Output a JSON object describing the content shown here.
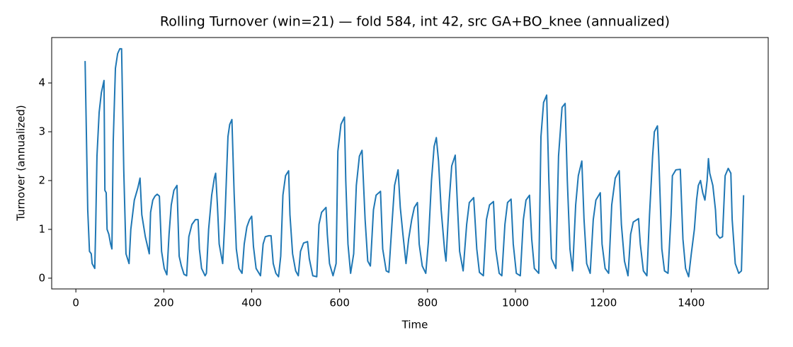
{
  "chart_data": {
    "type": "line",
    "title": "Rolling Turnover (win=21) — fold 584, int 42, src GA+BO_knee (annualized)",
    "xlabel": "Time",
    "ylabel": "Turnover (annualized)",
    "x": [
      21,
      27,
      31,
      35,
      37,
      43,
      45,
      48,
      53,
      58,
      64,
      66,
      69,
      71,
      75,
      79,
      82,
      85,
      90,
      95,
      100,
      104,
      109,
      114,
      121,
      125,
      133,
      141,
      146,
      150,
      158,
      167,
      170,
      175,
      180,
      185,
      190,
      195,
      201,
      207,
      212,
      217,
      223,
      230,
      235,
      240,
      246,
      252,
      257,
      264,
      272,
      278,
      281,
      286,
      294,
      297,
      302,
      309,
      315,
      318,
      322,
      326,
      334,
      339,
      346,
      350,
      355,
      360,
      365,
      371,
      378,
      383,
      389,
      395,
      400,
      404,
      410,
      420,
      426,
      431,
      439,
      444,
      449,
      455,
      461,
      466,
      471,
      477,
      484,
      487,
      493,
      500,
      506,
      511,
      518,
      527,
      531,
      539,
      548,
      553,
      559,
      569,
      572,
      577,
      585,
      592,
      596,
      603,
      611,
      614,
      619,
      625,
      632,
      638,
      645,
      651,
      658,
      664,
      670,
      677,
      683,
      693,
      698,
      706,
      712,
      719,
      725,
      733,
      738,
      744,
      751,
      757,
      764,
      770,
      777,
      781,
      788,
      796,
      802,
      809,
      815,
      820,
      825,
      831,
      839,
      842,
      849,
      855,
      863,
      868,
      873,
      881,
      889,
      895,
      905,
      912,
      918,
      927,
      934,
      941,
      950,
      955,
      963,
      969,
      976,
      982,
      990,
      995,
      1002,
      1011,
      1018,
      1024,
      1032,
      1037,
      1043,
      1053,
      1058,
      1064,
      1071,
      1076,
      1082,
      1092,
      1098,
      1106,
      1113,
      1118,
      1124,
      1130,
      1137,
      1143,
      1151,
      1156,
      1162,
      1170,
      1177,
      1183,
      1193,
      1197,
      1204,
      1212,
      1219,
      1227,
      1236,
      1241,
      1248,
      1256,
      1262,
      1268,
      1280,
      1284,
      1291,
      1299,
      1305,
      1312,
      1316,
      1323,
      1326,
      1333,
      1339,
      1347,
      1354,
      1357,
      1365,
      1375,
      1381,
      1387,
      1394,
      1400,
      1407,
      1412,
      1416,
      1421,
      1426,
      1431,
      1436,
      1439,
      1442,
      1449,
      1455,
      1458,
      1465,
      1471,
      1477,
      1484,
      1490,
      1493,
      1500,
      1508,
      1514,
      1519
    ],
    "series": [
      {
        "name": "Turnover",
        "color": "#1f77b4",
        "values": [
          4.45,
          1.4,
          0.55,
          0.5,
          0.3,
          0.2,
          1.0,
          2.5,
          3.4,
          3.8,
          4.05,
          1.8,
          1.75,
          1.0,
          0.9,
          0.7,
          0.6,
          2.8,
          4.3,
          4.6,
          4.7,
          4.7,
          2.2,
          0.5,
          0.3,
          1.0,
          1.6,
          1.85,
          2.05,
          1.3,
          0.85,
          0.5,
          1.35,
          1.6,
          1.68,
          1.72,
          1.68,
          0.55,
          0.2,
          0.07,
          0.9,
          1.5,
          1.8,
          1.9,
          0.45,
          0.25,
          0.08,
          0.05,
          0.85,
          1.1,
          1.2,
          1.2,
          0.6,
          0.2,
          0.05,
          0.1,
          1.0,
          1.7,
          2.05,
          2.15,
          1.5,
          0.7,
          0.3,
          1.2,
          2.9,
          3.15,
          3.25,
          1.75,
          0.6,
          0.2,
          0.1,
          0.7,
          1.05,
          1.2,
          1.27,
          0.65,
          0.2,
          0.05,
          0.7,
          0.85,
          0.87,
          0.87,
          0.3,
          0.1,
          0.03,
          0.45,
          1.7,
          2.1,
          2.2,
          1.3,
          0.5,
          0.15,
          0.05,
          0.55,
          0.72,
          0.75,
          0.4,
          0.05,
          0.03,
          1.1,
          1.35,
          1.45,
          0.9,
          0.3,
          0.05,
          0.3,
          2.6,
          3.15,
          3.3,
          2.0,
          0.7,
          0.1,
          0.5,
          1.9,
          2.5,
          2.62,
          1.2,
          0.35,
          0.25,
          1.4,
          1.7,
          1.78,
          0.6,
          0.15,
          0.12,
          1.1,
          1.9,
          2.22,
          1.45,
          0.9,
          0.3,
          0.8,
          1.2,
          1.45,
          1.55,
          0.7,
          0.25,
          0.1,
          0.75,
          2.0,
          2.7,
          2.88,
          2.4,
          1.4,
          0.55,
          0.35,
          1.55,
          2.3,
          2.52,
          1.5,
          0.55,
          0.15,
          1.1,
          1.55,
          1.65,
          0.6,
          0.12,
          0.05,
          1.2,
          1.5,
          1.57,
          0.6,
          0.1,
          0.05,
          1.1,
          1.55,
          1.62,
          0.7,
          0.1,
          0.05,
          1.2,
          1.6,
          1.7,
          0.8,
          0.2,
          0.1,
          2.9,
          3.6,
          3.75,
          2.0,
          0.4,
          0.2,
          2.5,
          3.5,
          3.58,
          2.0,
          0.6,
          0.15,
          1.5,
          2.1,
          2.4,
          1.2,
          0.3,
          0.1,
          1.2,
          1.6,
          1.75,
          0.7,
          0.2,
          0.1,
          1.5,
          2.05,
          2.2,
          1.1,
          0.35,
          0.05,
          0.9,
          1.15,
          1.22,
          0.7,
          0.15,
          0.05,
          1.3,
          2.5,
          3.0,
          3.12,
          2.5,
          0.6,
          0.15,
          0.1,
          1.3,
          2.1,
          2.22,
          2.23,
          0.8,
          0.2,
          0.03,
          0.5,
          1.0,
          1.6,
          1.9,
          2.0,
          1.75,
          1.6,
          2.0,
          2.45,
          2.15,
          1.9,
          1.4,
          0.9,
          0.82,
          0.85,
          2.1,
          2.25,
          2.15,
          1.2,
          0.3,
          0.1,
          0.15,
          1.7
        ]
      }
    ],
    "xlim": [
      -55,
      1575
    ],
    "ylim": [
      -0.22,
      4.93
    ],
    "xticks": [
      0,
      200,
      400,
      600,
      800,
      1000,
      1200,
      1400
    ],
    "yticks": [
      0,
      1,
      2,
      3,
      4
    ]
  }
}
